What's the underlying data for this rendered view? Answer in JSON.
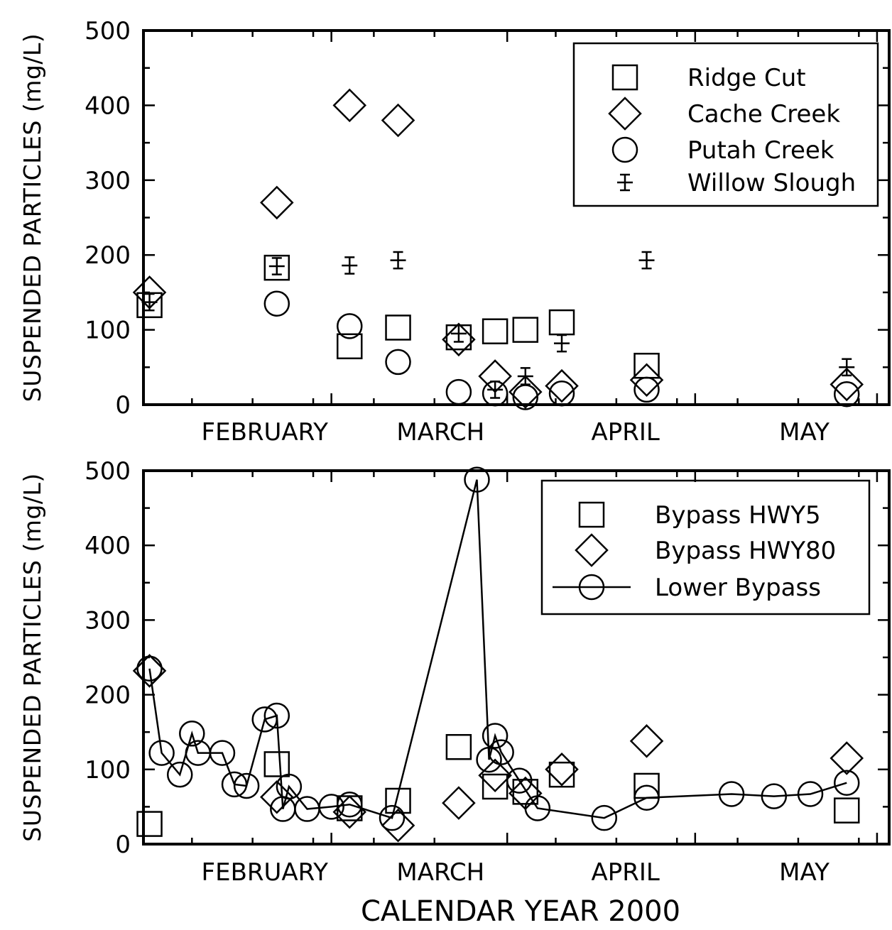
{
  "chart_data": [
    {
      "type": "scatter",
      "title": "",
      "xlabel": "",
      "ylabel": "SUSPENDED PARTICLES (mg/L)",
      "ylim": [
        0,
        500
      ],
      "xlim": [
        0,
        123
      ],
      "yticks": [
        0,
        100,
        200,
        300,
        400,
        500
      ],
      "xticks_major": [
        31,
        60,
        91,
        121
      ],
      "month_labels": [
        {
          "label": "FEBRUARY",
          "x": 20
        },
        {
          "label": "MARCH",
          "x": 49
        },
        {
          "label": "APRIL",
          "x": 79.5
        },
        {
          "label": "MAY",
          "x": 109
        }
      ],
      "legend_position": "top-right",
      "series": [
        {
          "name": "Ridge Cut",
          "marker": "square",
          "x": [
            1,
            22,
            34,
            42,
            52,
            58,
            63,
            69,
            83
          ],
          "y": [
            133,
            183,
            78,
            103,
            90,
            98,
            100,
            110,
            52
          ]
        },
        {
          "name": "Cache Creek",
          "marker": "diamond",
          "x": [
            1,
            22,
            34,
            42,
            52,
            58,
            63,
            69,
            83,
            116
          ],
          "y": [
            150,
            270,
            400,
            380,
            87,
            38,
            17,
            25,
            33,
            27
          ]
        },
        {
          "name": "Putah Creek",
          "marker": "circle",
          "x": [
            22,
            34,
            42,
            52,
            58,
            63,
            69,
            83,
            116
          ],
          "y": [
            135,
            105,
            57,
            17,
            15,
            10,
            15,
            20,
            14
          ]
        },
        {
          "name": "Willow Slough",
          "marker": "cross-errorbar",
          "x": [
            1,
            22,
            34,
            42,
            52,
            58,
            63,
            69,
            83,
            116
          ],
          "y": [
            137,
            185,
            186,
            193,
            95,
            20,
            38,
            82,
            193,
            50
          ],
          "err": [
            11,
            11,
            11,
            11,
            11,
            11,
            11,
            11,
            11,
            11
          ]
        }
      ]
    },
    {
      "type": "scatter",
      "title": "",
      "xlabel": "CALENDAR YEAR 2000",
      "ylabel": "SUSPENDED PARTICLES (mg/L)",
      "ylim": [
        0,
        500
      ],
      "xlim": [
        0,
        123
      ],
      "yticks": [
        0,
        100,
        200,
        300,
        400,
        500
      ],
      "xticks_major": [
        31,
        60,
        91,
        121
      ],
      "month_labels": [
        {
          "label": "FEBRUARY",
          "x": 20
        },
        {
          "label": "MARCH",
          "x": 49
        },
        {
          "label": "APRIL",
          "x": 79.5
        },
        {
          "label": "MAY",
          "x": 109
        }
      ],
      "legend_position": "top-right",
      "series": [
        {
          "name": "Bypass  HWY5",
          "marker": "square",
          "x": [
            1,
            22,
            34,
            42,
            52,
            58,
            63,
            69,
            83,
            116
          ],
          "y": [
            27,
            107,
            48,
            58,
            130,
            77,
            70,
            93,
            78,
            45
          ]
        },
        {
          "name": "Bypass  HWY80",
          "marker": "diamond",
          "x": [
            1,
            22,
            34,
            42,
            52,
            58,
            63,
            69,
            83,
            116
          ],
          "y": [
            232,
            63,
            43,
            25,
            55,
            92,
            68,
            100,
            138,
            115
          ]
        },
        {
          "name": "Lower Bypass",
          "marker": "circle-line",
          "x": [
            1,
            3,
            6,
            8,
            9,
            13,
            15,
            17,
            20,
            22,
            23,
            24,
            27,
            31,
            34,
            41,
            55,
            57,
            58,
            59,
            62,
            65,
            76,
            83,
            97,
            104,
            110,
            116
          ],
          "y": [
            235,
            122,
            93,
            148,
            122,
            122,
            80,
            78,
            167,
            172,
            47,
            77,
            47,
            50,
            53,
            35,
            488,
            113,
            145,
            123,
            85,
            48,
            35,
            62,
            67,
            64,
            67,
            82
          ]
        }
      ]
    }
  ]
}
